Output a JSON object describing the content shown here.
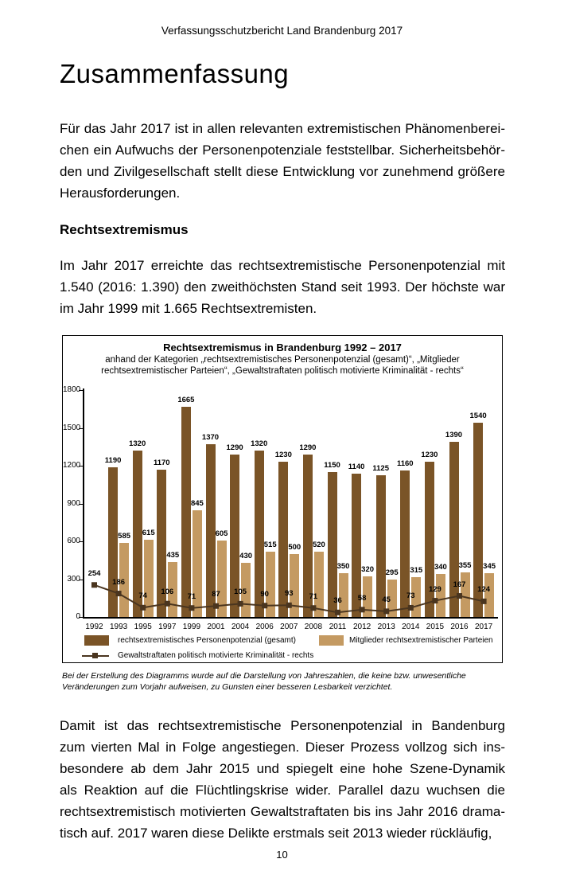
{
  "header": {
    "text": "Verfassungsschutzbericht Land Brandenburg 2017"
  },
  "title": "Zusammenfassung",
  "paragraphs": {
    "p1": {
      "lines": [
        "Für das Jahr 2017 ist in allen relevanten extremistischen Phänomenberei-",
        "chen ein Aufwuchs der Personenpotenziale feststellbar. Sicherheitsbehör-",
        "den und Zivilgesellschaft stellt diese Entwicklung vor zunehmend größere",
        "Herausforderungen."
      ]
    },
    "section_heading": "Rechtsextremismus",
    "p2": {
      "lines": [
        "Im Jahr 2017 erreichte das rechtsextremistische Personenpotenzial mit",
        "1.540 (2016: 1.390) den zweithöchsten Stand seit 1993. Der höchste war",
        "im Jahr 1999 mit 1.665 Rechtsextremisten."
      ]
    },
    "p3": {
      "lines": [
        "Damit ist das rechtsextremistische Personenpotenzial in Bandenburg",
        "zum vierten Mal in Folge angestiegen. Dieser Prozess vollzog sich ins-",
        "besondere ab dem Jahr 2015 und spiegelt eine hohe Szene-Dynamik",
        "als Reaktion auf die Flüchtlingskrise wider. Parallel dazu wuchsen die",
        "rechtsextremistisch motivierten Gewaltstraftaten bis ins Jahr 2016 drama-",
        "tisch auf. 2017 waren diese Delikte erstmals seit 2013 wieder rückläufig,"
      ]
    }
  },
  "chart_data": {
    "type": "bar",
    "title": "Rechtsextremismus in Brandenburg 1992 – 2017",
    "subtitle_lines": [
      "anhand der Kategorien „rechtsextremistisches Personenpotenzial (gesamt)“, „Mitglieder",
      "rechtsextremistischer Parteien“, „Gewaltstraftaten politisch motivierte Kriminalität - rechts“"
    ],
    "categories": [
      "1992",
      "1993",
      "1995",
      "1997",
      "1999",
      "2001",
      "2004",
      "2006",
      "2007",
      "2008",
      "2011",
      "2012",
      "2013",
      "2014",
      "2015",
      "2016",
      "2017"
    ],
    "series": [
      {
        "name": "rechtsextremistisches Personenpotenzial (gesamt)",
        "slug": "personenpotenzial",
        "type": "bar",
        "color": "#7a5427",
        "values": [
          null,
          1190,
          1320,
          1170,
          1665,
          1370,
          1290,
          1320,
          1230,
          1290,
          1150,
          1140,
          1125,
          1160,
          1230,
          1390,
          1540
        ]
      },
      {
        "name": "Mitglieder rechtsextremistischer Parteien",
        "slug": "mitglieder",
        "type": "bar",
        "color": "#c49a62",
        "values": [
          null,
          585,
          615,
          435,
          845,
          605,
          430,
          515,
          500,
          520,
          350,
          320,
          295,
          315,
          340,
          355,
          345
        ]
      },
      {
        "name": "Gewaltstraftaten politisch motivierte Kriminalität - rechts",
        "slug": "gewaltstraftaten",
        "type": "line",
        "color": "#4a351f",
        "values": [
          254,
          186,
          74,
          106,
          71,
          87,
          105,
          90,
          93,
          71,
          36,
          58,
          45,
          73,
          129,
          167,
          124
        ]
      }
    ],
    "xlabel": "",
    "ylabel": "",
    "ylim": [
      0,
      1800
    ],
    "ytick_step": 300,
    "grid": false,
    "legend_position": "bottom"
  },
  "chart_footnote": {
    "lines": [
      "Bei der Erstellung des Diagramms wurde auf die Darstellung von Jahreszahlen, die keine bzw. unwesentliche",
      "Veränderungen zum Vorjahr aufweisen, zu Gunsten einer besseren Lesbarkeit verzichtet."
    ]
  },
  "page_number": "10"
}
